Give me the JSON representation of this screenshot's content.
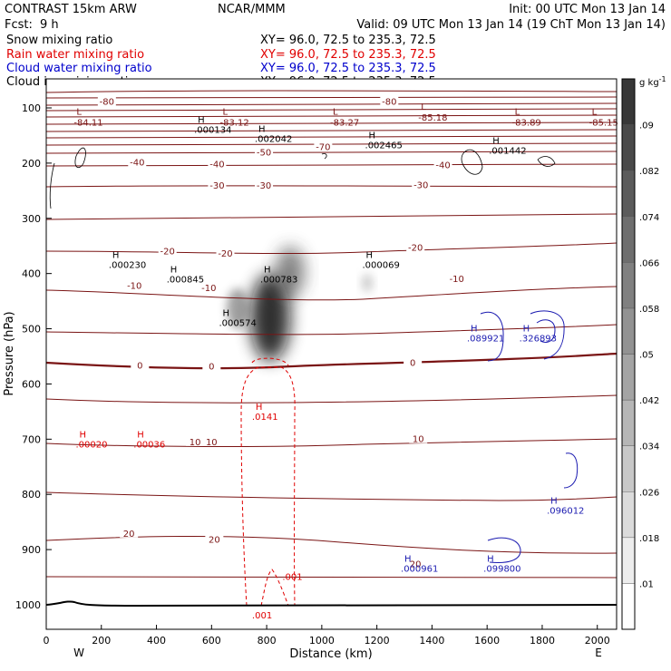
{
  "header": {
    "model": "CONTRAST 15km ARW",
    "center": "NCAR/MMM",
    "init": "Init: 00 UTC Mon 13 Jan 14",
    "fcst_label": "Fcst:",
    "fcst_value": "9 h",
    "valid": "Valid: 09 UTC Mon 13 Jan 14 (19 ChT Mon 13 Jan 14)"
  },
  "fields": [
    {
      "name": "Snow mixing ratio",
      "xy": "XY=  96.0, 72.5 to 235.3, 72.5",
      "color": "#000000"
    },
    {
      "name": "Rain water mixing ratio",
      "xy": "XY=  96.0, 72.5 to 235.3, 72.5",
      "color": "#e00000"
    },
    {
      "name": "Cloud water mixing ratio",
      "xy": "XY=  96.0, 72.5 to 235.3, 72.5",
      "color": "#0000cc"
    },
    {
      "name": "Cloud ice mixing ratio",
      "xy": "XY=  96.0, 72.5 to 235.3, 72.5",
      "color": "#000000"
    }
  ],
  "colors": {
    "temperature": "#7a1414",
    "rain": "#e00000",
    "cloud_water": "#1a1ab0",
    "snow": "#000000",
    "ground": "#000000"
  },
  "chart_data": {
    "type": "heatmap",
    "xlabel": "Distance (km)",
    "ylabel": "Pressure (hPa)",
    "xlim": [
      0,
      2070
    ],
    "ylim": [
      1035,
      50
    ],
    "xticks": [
      0,
      200,
      400,
      600,
      800,
      1000,
      1200,
      1400,
      1600,
      1800,
      2000
    ],
    "yticks": [
      100,
      200,
      300,
      400,
      500,
      600,
      700,
      800,
      900,
      1000
    ],
    "x_end_labels": {
      "left": "W",
      "right": "E"
    },
    "colorbar": {
      "unit": "g kg",
      "unit_exp": "-1",
      "ticks": [
        ".01",
        ".018",
        ".026",
        ".034",
        ".042",
        ".05",
        ".058",
        ".066",
        ".074",
        ".082",
        ".09"
      ]
    },
    "temperature_levels": [
      {
        "label": "-80",
        "label_at": [
          [
            220,
            88
          ],
          [
            1245,
            88
          ]
        ]
      },
      {
        "label": "-70",
        "label_at": [
          [
            1005,
            170
          ]
        ]
      },
      {
        "label": "-50",
        "label_at": [
          [
            790,
            180
          ]
        ]
      },
      {
        "label": "-40",
        "label_at": [
          [
            330,
            198
          ],
          [
            620,
            201
          ],
          [
            1440,
            203
          ]
        ]
      },
      {
        "label": "-30",
        "label_at": [
          [
            620,
            240
          ],
          [
            790,
            240
          ],
          [
            1360,
            239
          ]
        ]
      },
      {
        "label": "-20",
        "label_at": [
          [
            440,
            359
          ],
          [
            650,
            363
          ],
          [
            1340,
            352
          ]
        ]
      },
      {
        "label": "-10",
        "label_at": [
          [
            320,
            421
          ],
          [
            590,
            425
          ],
          [
            1490,
            409
          ]
        ]
      },
      {
        "label": "0",
        "label_at": [
          [
            340,
            566
          ],
          [
            600,
            567
          ],
          [
            1330,
            561
          ]
        ]
      },
      {
        "label": "10",
        "label_at": [
          [
            540,
            704
          ],
          [
            600,
            704
          ],
          [
            1350,
            699
          ]
        ]
      },
      {
        "label": "20",
        "label_at": [
          [
            300,
            870
          ],
          [
            610,
            881
          ],
          [
            1340,
            925
          ]
        ]
      }
    ],
    "snow_maxima": [
      {
        "label": "H",
        "value": ".000134",
        "x": 550,
        "p": 140
      },
      {
        "label": "H",
        "value": ".002042",
        "x": 770,
        "p": 157
      },
      {
        "label": "H",
        "value": ".002465",
        "x": 1170,
        "p": 168
      },
      {
        "label": "H",
        "value": ".001442",
        "x": 1620,
        "p": 178
      },
      {
        "label": "H",
        "value": ".000230",
        "x": 240,
        "p": 385
      },
      {
        "label": "H",
        "value": ".000845",
        "x": 450,
        "p": 411
      },
      {
        "label": "H",
        "value": ".000783",
        "x": 790,
        "p": 411
      },
      {
        "label": "H",
        "value": ".000069",
        "x": 1160,
        "p": 385
      },
      {
        "label": "H",
        "value": ".000574",
        "x": 640,
        "p": 490
      }
    ],
    "ice_minima": [
      {
        "label": "L",
        "value": "-84.11",
        "x": 110,
        "p": 112
      },
      {
        "label": "L",
        "value": "-83.12",
        "x": 640,
        "p": 112
      },
      {
        "label": "L",
        "value": "-83.27",
        "x": 1040,
        "p": 112
      },
      {
        "label": "L",
        "value": "-85.18",
        "x": 1360,
        "p": 103
      },
      {
        "label": "L",
        "value": "-83.89",
        "x": 1700,
        "p": 112
      },
      {
        "label": "L",
        "value": "-85.15",
        "x": 1980,
        "p": 112
      }
    ],
    "rain_maxima": [
      {
        "label": "H",
        "value": ".0141",
        "x": 760,
        "p": 660
      },
      {
        "label": "H",
        "value": ".00020",
        "x": 120,
        "p": 710
      },
      {
        "label": "H",
        "value": ".00036",
        "x": 330,
        "p": 710
      },
      {
        "label": "",
        "value": ".001",
        "x": 870,
        "p": 950
      },
      {
        "label": "",
        "value": ".001",
        "x": 760,
        "p": 1020
      }
    ],
    "cloud_water_maxima": [
      {
        "label": "H",
        "value": ".089921",
        "x": 1540,
        "p": 518
      },
      {
        "label": "H",
        "value": ".326893",
        "x": 1730,
        "p": 518
      },
      {
        "label": "H",
        "value": ".096012",
        "x": 1830,
        "p": 830
      },
      {
        "label": "H",
        "value": ".000961",
        "x": 1300,
        "p": 935
      },
      {
        "label": "H",
        "value": ".099800",
        "x": 1600,
        "p": 935
      }
    ]
  }
}
